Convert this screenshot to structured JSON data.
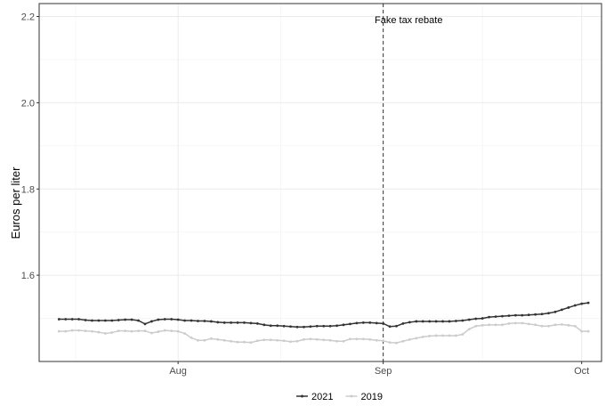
{
  "chart_data": {
    "type": "line",
    "title": "",
    "xlabel": "",
    "ylabel": "Euros per liter",
    "ylim": [
      1.4,
      2.23
    ],
    "yticks": [
      1.6,
      1.8,
      2.0,
      2.2
    ],
    "ytick_labels": [
      "1.6",
      "1.8",
      "2.0",
      "2.2"
    ],
    "xlim": [
      "2021-07-11",
      "2021-10-04"
    ],
    "xticks": [
      "2021-08-01",
      "2021-09-01",
      "2021-10-01"
    ],
    "xtick_labels": [
      "Aug",
      "Sep",
      "Oct"
    ],
    "grid": true,
    "legend_position": "bottom",
    "annotation": {
      "date": "2021-09-01",
      "label": "Fake tax rebate",
      "style": "dashed"
    },
    "x": [
      "2021-07-14",
      "2021-07-15",
      "2021-07-16",
      "2021-07-17",
      "2021-07-18",
      "2021-07-19",
      "2021-07-20",
      "2021-07-21",
      "2021-07-22",
      "2021-07-23",
      "2021-07-24",
      "2021-07-25",
      "2021-07-26",
      "2021-07-27",
      "2021-07-28",
      "2021-07-29",
      "2021-07-30",
      "2021-07-31",
      "2021-08-01",
      "2021-08-02",
      "2021-08-03",
      "2021-08-04",
      "2021-08-05",
      "2021-08-06",
      "2021-08-07",
      "2021-08-08",
      "2021-08-09",
      "2021-08-10",
      "2021-08-11",
      "2021-08-12",
      "2021-08-13",
      "2021-08-14",
      "2021-08-15",
      "2021-08-16",
      "2021-08-17",
      "2021-08-18",
      "2021-08-19",
      "2021-08-20",
      "2021-08-21",
      "2021-08-22",
      "2021-08-23",
      "2021-08-24",
      "2021-08-25",
      "2021-08-26",
      "2021-08-27",
      "2021-08-28",
      "2021-08-29",
      "2021-08-30",
      "2021-08-31",
      "2021-09-01",
      "2021-09-02",
      "2021-09-03",
      "2021-09-04",
      "2021-09-05",
      "2021-09-06",
      "2021-09-07",
      "2021-09-08",
      "2021-09-09",
      "2021-09-10",
      "2021-09-11",
      "2021-09-12",
      "2021-09-13",
      "2021-09-14",
      "2021-09-15",
      "2021-09-16",
      "2021-09-17",
      "2021-09-18",
      "2021-09-19",
      "2021-09-20",
      "2021-09-21",
      "2021-09-22",
      "2021-09-23",
      "2021-09-24",
      "2021-09-25",
      "2021-09-26",
      "2021-09-27",
      "2021-09-28",
      "2021-09-29",
      "2021-09-30",
      "2021-10-01",
      "2021-10-02"
    ],
    "series": [
      {
        "name": "2021",
        "color": "#333333",
        "values": [
          1.498,
          1.498,
          1.498,
          1.498,
          1.496,
          1.495,
          1.495,
          1.495,
          1.495,
          1.496,
          1.497,
          1.497,
          1.495,
          1.487,
          1.493,
          1.497,
          1.498,
          1.498,
          1.497,
          1.495,
          1.495,
          1.494,
          1.494,
          1.493,
          1.491,
          1.49,
          1.49,
          1.49,
          1.49,
          1.489,
          1.488,
          1.485,
          1.483,
          1.483,
          1.482,
          1.481,
          1.48,
          1.48,
          1.481,
          1.482,
          1.482,
          1.482,
          1.483,
          1.485,
          1.487,
          1.489,
          1.49,
          1.49,
          1.489,
          1.488,
          1.481,
          1.482,
          1.488,
          1.491,
          1.493,
          1.493,
          1.493,
          1.493,
          1.493,
          1.493,
          1.494,
          1.495,
          1.497,
          1.499,
          1.5,
          1.503,
          1.504,
          1.505,
          1.506,
          1.507,
          1.507,
          1.508,
          1.509,
          1.51,
          1.512,
          1.515,
          1.52,
          1.525,
          1.53,
          1.534,
          1.536
        ]
      },
      {
        "name": "2019",
        "color": "#cccccc",
        "values": [
          1.47,
          1.47,
          1.472,
          1.472,
          1.471,
          1.47,
          1.468,
          1.465,
          1.467,
          1.471,
          1.471,
          1.47,
          1.471,
          1.471,
          1.466,
          1.469,
          1.472,
          1.471,
          1.47,
          1.465,
          1.455,
          1.449,
          1.449,
          1.453,
          1.451,
          1.449,
          1.447,
          1.445,
          1.445,
          1.444,
          1.448,
          1.45,
          1.45,
          1.449,
          1.448,
          1.446,
          1.447,
          1.451,
          1.452,
          1.451,
          1.45,
          1.449,
          1.447,
          1.447,
          1.452,
          1.452,
          1.452,
          1.451,
          1.449,
          1.448,
          1.444,
          1.443,
          1.447,
          1.451,
          1.454,
          1.457,
          1.459,
          1.46,
          1.46,
          1.46,
          1.46,
          1.463,
          1.475,
          1.482,
          1.484,
          1.485,
          1.485,
          1.485,
          1.488,
          1.489,
          1.489,
          1.487,
          1.485,
          1.482,
          1.482,
          1.485,
          1.486,
          1.484,
          1.482,
          1.47,
          1.47
        ]
      }
    ]
  }
}
